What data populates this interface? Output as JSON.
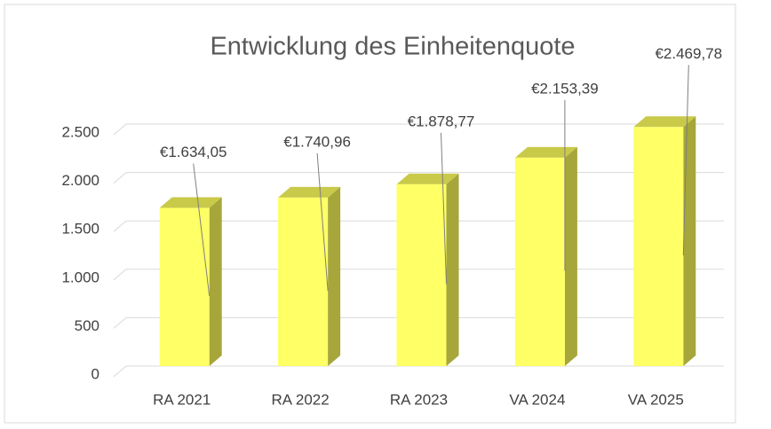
{
  "chart_data": {
    "type": "bar3d",
    "title": "Entwicklung des Einheitenquote",
    "categories": [
      "RA 2021",
      "RA 2022",
      "RA 2023",
      "VA 2024",
      "VA 2025"
    ],
    "values": [
      1634.05,
      1740.96,
      1878.77,
      2153.39,
      2469.78
    ],
    "value_labels": [
      "€1.634,05",
      "€1.740,96",
      "€1.878,77",
      "€2.153,39",
      "€2.469,78"
    ],
    "color": "#ffff66",
    "ylim": [
      0,
      2500
    ],
    "yticks": [
      0,
      500,
      {
        "value": 1000,
        "label": "1.000"
      },
      {
        "value": 1500,
        "label": "1.500"
      },
      {
        "value": 2000,
        "label": "2.000"
      },
      {
        "value": 2500,
        "label": "2.500"
      }
    ],
    "grid": true
  }
}
